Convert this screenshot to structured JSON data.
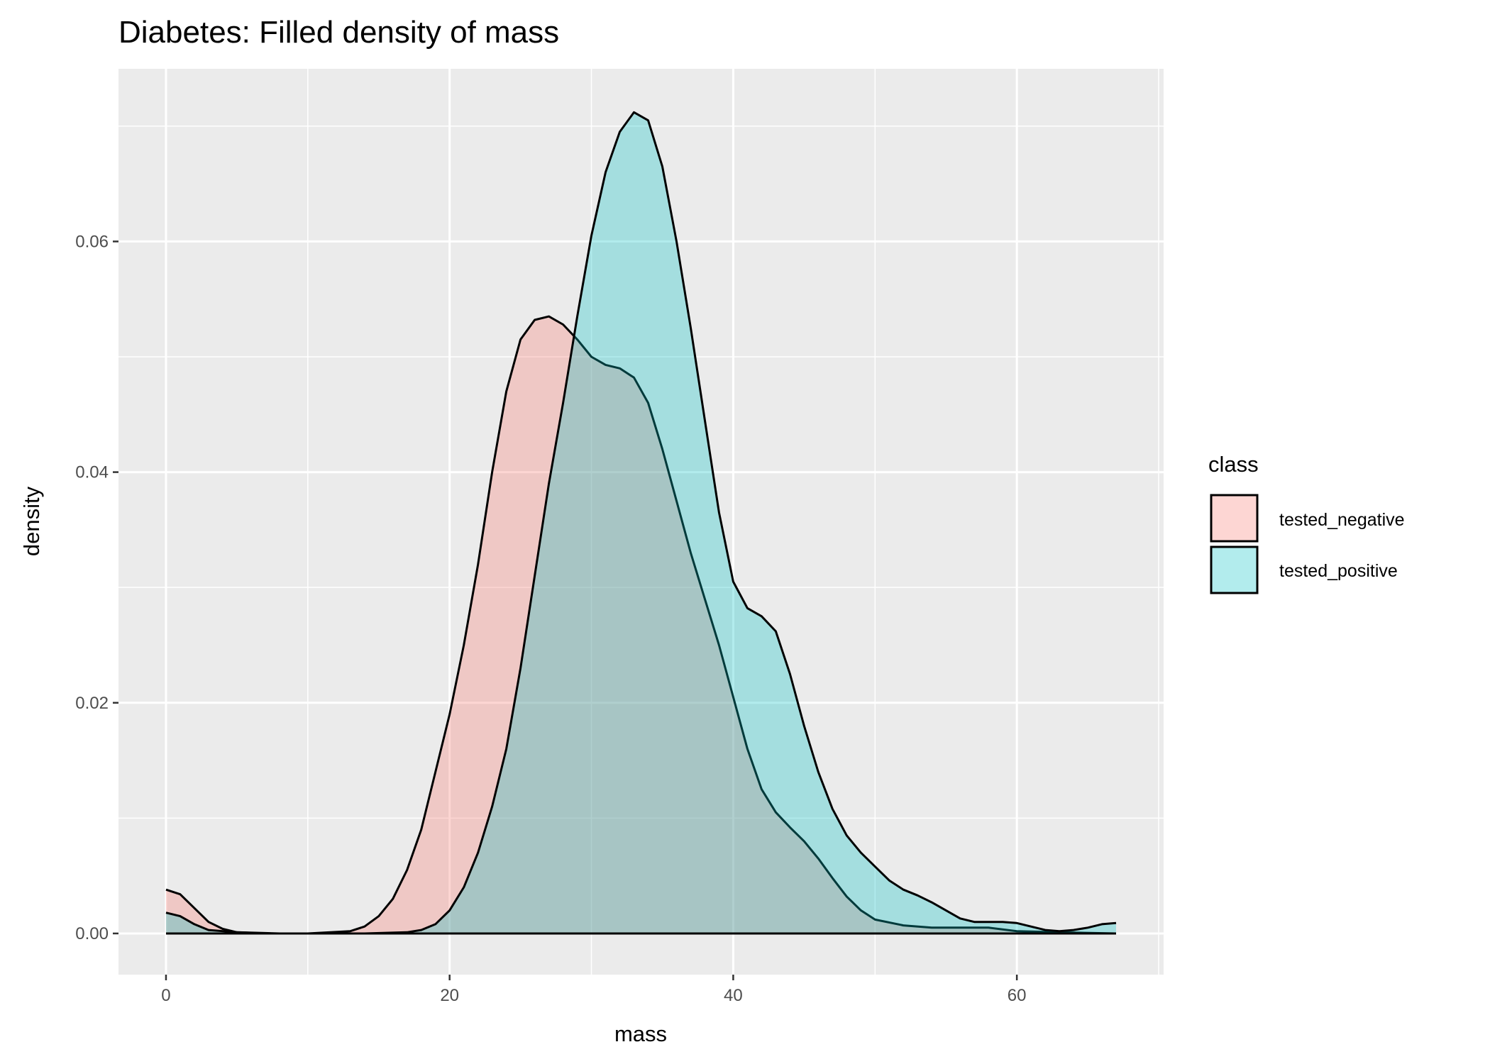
{
  "chart_data": {
    "type": "area",
    "title": "Diabetes: Filled density of mass",
    "xlabel": "mass",
    "ylabel": "density",
    "xlim": [
      -3.35,
      70.35
    ],
    "ylim": [
      -0.00357,
      0.07497
    ],
    "x_ticks": [
      0,
      20,
      40,
      60
    ],
    "x_tick_labels": [
      "0",
      "20",
      "40",
      "60"
    ],
    "y_ticks": [
      0.0,
      0.02,
      0.04,
      0.06
    ],
    "y_tick_labels": [
      "0.00",
      "0.02",
      "0.04",
      "0.06"
    ],
    "grid": true,
    "legend": {
      "title": "class",
      "position": "right"
    },
    "series": [
      {
        "name": "tested_negative",
        "fill": "#F8766D",
        "points": [
          [
            0,
            0.0038
          ],
          [
            1,
            0.0034
          ],
          [
            2,
            0.0022
          ],
          [
            3,
            0.001
          ],
          [
            4,
            0.0004
          ],
          [
            5,
            0.0001
          ],
          [
            7,
            0.0
          ],
          [
            10,
            0.0
          ],
          [
            13,
            0.0002
          ],
          [
            14,
            0.0006
          ],
          [
            15,
            0.0015
          ],
          [
            16,
            0.003
          ],
          [
            17,
            0.0055
          ],
          [
            18,
            0.009
          ],
          [
            19,
            0.014
          ],
          [
            20,
            0.019
          ],
          [
            21,
            0.025
          ],
          [
            22,
            0.032
          ],
          [
            23,
            0.04
          ],
          [
            24,
            0.047
          ],
          [
            25,
            0.0515
          ],
          [
            26,
            0.0532
          ],
          [
            27,
            0.0535
          ],
          [
            28,
            0.0528
          ],
          [
            29,
            0.0515
          ],
          [
            30,
            0.05
          ],
          [
            31,
            0.0493
          ],
          [
            32,
            0.049
          ],
          [
            33,
            0.0482
          ],
          [
            34,
            0.046
          ],
          [
            35,
            0.042
          ],
          [
            36,
            0.0375
          ],
          [
            37,
            0.033
          ],
          [
            38,
            0.029
          ],
          [
            39,
            0.025
          ],
          [
            40,
            0.0205
          ],
          [
            41,
            0.016
          ],
          [
            42,
            0.0125
          ],
          [
            43,
            0.0105
          ],
          [
            44,
            0.0092
          ],
          [
            45,
            0.008
          ],
          [
            46,
            0.0065
          ],
          [
            47,
            0.0048
          ],
          [
            48,
            0.0032
          ],
          [
            49,
            0.002
          ],
          [
            50,
            0.0012
          ],
          [
            52,
            0.0007
          ],
          [
            54,
            0.0005
          ],
          [
            56,
            0.0005
          ],
          [
            58,
            0.0005
          ],
          [
            60,
            0.0002
          ],
          [
            63,
            0.0001
          ],
          [
            67,
            0.0
          ]
        ]
      },
      {
        "name": "tested_positive",
        "fill": "#00BFC4",
        "points": [
          [
            0,
            0.0018
          ],
          [
            1,
            0.0015
          ],
          [
            2,
            0.0008
          ],
          [
            3,
            0.0003
          ],
          [
            5,
            0.0001
          ],
          [
            8,
            0.0
          ],
          [
            14,
            0.0
          ],
          [
            17,
            0.0001
          ],
          [
            18,
            0.0003
          ],
          [
            19,
            0.0008
          ],
          [
            20,
            0.002
          ],
          [
            21,
            0.004
          ],
          [
            22,
            0.007
          ],
          [
            23,
            0.011
          ],
          [
            24,
            0.016
          ],
          [
            25,
            0.023
          ],
          [
            26,
            0.031
          ],
          [
            27,
            0.039
          ],
          [
            28,
            0.046
          ],
          [
            29,
            0.0535
          ],
          [
            30,
            0.0605
          ],
          [
            31,
            0.066
          ],
          [
            32,
            0.0695
          ],
          [
            33,
            0.0712
          ],
          [
            34,
            0.0705
          ],
          [
            35,
            0.0665
          ],
          [
            36,
            0.06
          ],
          [
            37,
            0.0525
          ],
          [
            38,
            0.0445
          ],
          [
            39,
            0.0365
          ],
          [
            40,
            0.0305
          ],
          [
            41,
            0.0282
          ],
          [
            42,
            0.0275
          ],
          [
            43,
            0.0262
          ],
          [
            44,
            0.0225
          ],
          [
            45,
            0.018
          ],
          [
            46,
            0.014
          ],
          [
            47,
            0.0108
          ],
          [
            48,
            0.0085
          ],
          [
            49,
            0.007
          ],
          [
            50,
            0.0058
          ],
          [
            51,
            0.0046
          ],
          [
            52,
            0.0038
          ],
          [
            53,
            0.0033
          ],
          [
            54,
            0.0027
          ],
          [
            55,
            0.002
          ],
          [
            56,
            0.0013
          ],
          [
            57,
            0.001
          ],
          [
            58,
            0.001
          ],
          [
            59,
            0.001
          ],
          [
            60,
            0.0009
          ],
          [
            61,
            0.0006
          ],
          [
            62,
            0.0003
          ],
          [
            63,
            0.0002
          ],
          [
            64,
            0.0003
          ],
          [
            65,
            0.0005
          ],
          [
            66,
            0.0008
          ],
          [
            67,
            0.0009
          ]
        ]
      }
    ]
  }
}
